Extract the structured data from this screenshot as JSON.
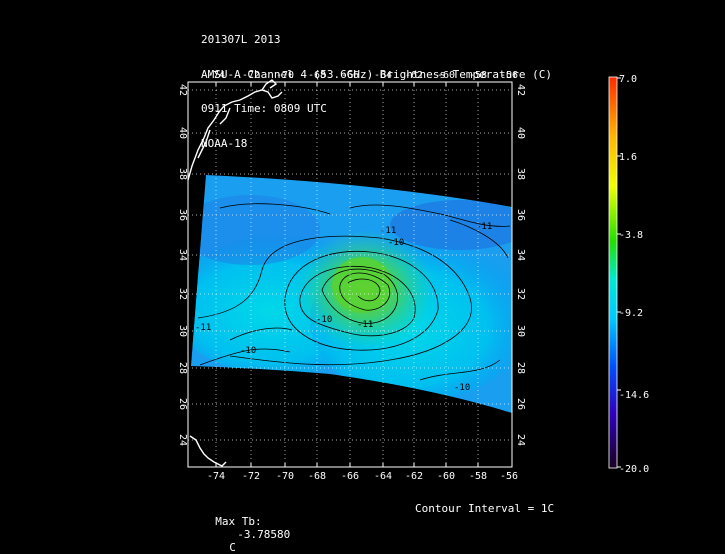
{
  "header": {
    "line1": "201307L 2013",
    "line2": "AMSU-A Channel 4 (53.6GHz) Brightness Temperature (C)",
    "line3": "0911 Time: 0809 UTC",
    "line4": "NOAA-18"
  },
  "map": {
    "lon_labels": [
      "-74",
      "-72",
      "-70",
      "-68",
      "-66",
      "-64",
      "-62",
      "-60",
      "-58",
      "-56"
    ],
    "lat_labels": [
      "42",
      "40",
      "38",
      "36",
      "34",
      "32",
      "30",
      "28",
      "26",
      "24"
    ],
    "contour_labels": [
      "-11",
      "-10",
      "-10",
      "-10",
      "-11",
      "-11",
      "-11",
      "-10"
    ]
  },
  "colorbar": {
    "labels": [
      "7.0",
      "1.6",
      "-3.8",
      "-9.2",
      "-14.6",
      "-20.0"
    ],
    "top_color": "#ff2a00",
    "bottom_color": "#1a0020"
  },
  "footer": {
    "max_label": "Max Tb:",
    "max_value": "-3.78580",
    "max_unit": "C",
    "contour_interval": "Contour Interval = 1C"
  }
}
